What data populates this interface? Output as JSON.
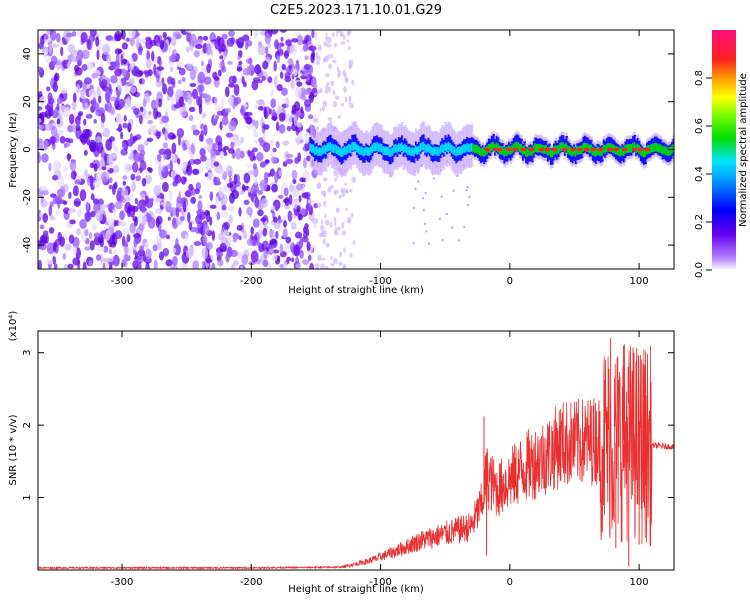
{
  "figure_title": "C2E5.2023.171.10.01.G29",
  "colors": {
    "purple": "#6600ee",
    "blue": "#0000ff",
    "cyan": "#00e5ff",
    "green": "#00dd00",
    "red": "#ff2020",
    "snr_line": "#e83030"
  },
  "chart_data": [
    {
      "type": "heatmap",
      "xlabel": "Height of straight line (km)",
      "ylabel": "Frequency (Hz)",
      "xlim": [
        -365,
        127
      ],
      "ylim": [
        -50,
        50
      ],
      "xticks": [
        -300,
        -200,
        -100,
        0,
        100
      ],
      "yticks": [
        -40,
        -20,
        0,
        20,
        40
      ],
      "grid": false,
      "colorbar": {
        "label": "Normalized spectral amplitude",
        "range": [
          0,
          1
        ],
        "ticks": [
          "0.0",
          "0.2",
          "0.4",
          "0.6",
          "0.8"
        ]
      },
      "noise_region_km": [
        -365,
        -150
      ],
      "sparse_region_km": [
        -150,
        -120
      ],
      "signal_start_km": -155,
      "signal_freq_hz": 0,
      "signal_peak_km": [
        -20,
        110
      ]
    },
    {
      "type": "line",
      "xlabel": "Height of straight line (km)",
      "ylabel": "SNR (10 * v/v)",
      "y_scale_note": "(x10⁴)",
      "xlim": [
        -365,
        127
      ],
      "ylim": [
        0,
        3.3
      ],
      "xticks": [
        -300,
        -200,
        -100,
        0,
        100
      ],
      "yticks": [
        1,
        2,
        3
      ],
      "grid": false,
      "points": [
        [
          -365,
          0.03
        ],
        [
          -300,
          0.03
        ],
        [
          -200,
          0.03
        ],
        [
          -130,
          0.04
        ],
        [
          -120,
          0.08
        ],
        [
          -110,
          0.12
        ],
        [
          -100,
          0.18
        ],
        [
          -90,
          0.25
        ],
        [
          -80,
          0.32
        ],
        [
          -70,
          0.4
        ],
        [
          -60,
          0.45
        ],
        [
          -50,
          0.5
        ],
        [
          -40,
          0.55
        ],
        [
          -30,
          0.6
        ],
        [
          -22,
          0.9
        ],
        [
          -18,
          1.3
        ],
        [
          -10,
          1.1
        ],
        [
          0,
          1.25
        ],
        [
          10,
          1.4
        ],
        [
          20,
          1.5
        ],
        [
          30,
          1.6
        ],
        [
          40,
          1.75
        ],
        [
          50,
          1.75
        ],
        [
          60,
          1.78
        ],
        [
          70,
          1.8
        ],
        [
          80,
          1.75
        ],
        [
          90,
          1.8
        ],
        [
          100,
          1.75
        ],
        [
          110,
          1.72
        ],
        [
          127,
          1.7
        ]
      ],
      "spikes": [
        [
          -20,
          2.12
        ],
        [
          -18,
          0.2
        ],
        [
          78,
          3.2
        ],
        [
          82,
          0.3
        ],
        [
          88,
          3.1
        ],
        [
          92,
          0.05
        ],
        [
          96,
          3.0
        ],
        [
          100,
          0.35
        ],
        [
          104,
          2.6
        ]
      ]
    }
  ]
}
